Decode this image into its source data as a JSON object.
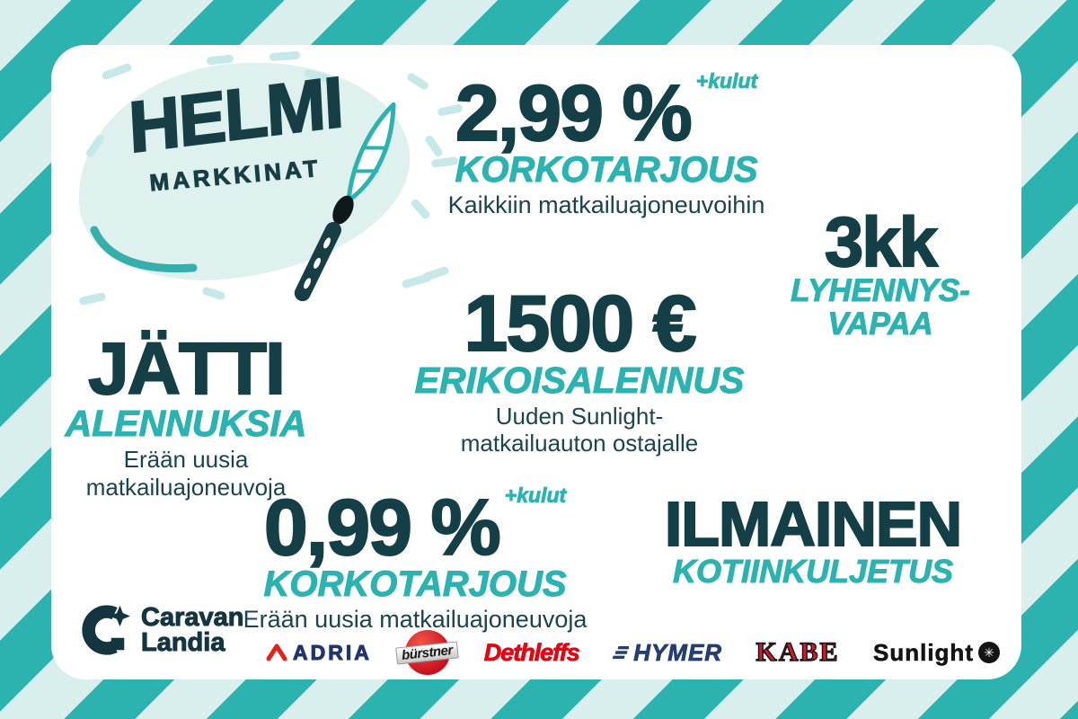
{
  "page": {
    "type": "promotional-banner"
  },
  "colors": {
    "dark_petrol": "#173e44",
    "teal_accent": "#2bb3b1",
    "stripe_teal": "#2cb3b0",
    "stripe_light": "#d9efee",
    "adria_navy": "#20356b",
    "adria_red": "#e2231a",
    "burstner_red": "#c8101f",
    "dethleffs_red": "#e20613",
    "hymer_navy": "#243e70",
    "kabe_red": "#d7182a",
    "sunlight_black": "#141414"
  },
  "campaign_logo": {
    "title": "HELMI",
    "subtitle": "MARKKINAT"
  },
  "offers": {
    "interest_299": {
      "value": "2,99 %",
      "superscript": "+kulut",
      "label": "KORKOTARJOUS",
      "description": "Kaikkiin matkailuajoneuvoihin"
    },
    "payment_free_3kk": {
      "value": "3kk",
      "label_line1": "LYHENNYS-",
      "label_line2": "VAPAA"
    },
    "discount_1500": {
      "value": "1500 €",
      "label": "ERIKOISALENNUS",
      "description_line1": "Uuden Sunlight-",
      "description_line2": "matkailuauton ostajalle"
    },
    "giant_discounts": {
      "value": "JÄTTI",
      "label": "ALENNUKSIA",
      "description_line1": "Erään uusia",
      "description_line2": "matkailuajoneuvoja"
    },
    "interest_099": {
      "value": "0,99 %",
      "superscript": "+kulut",
      "label": "KORKOTARJOUS",
      "description": "Erään uusia matkailuajoneuvoja"
    },
    "free_delivery": {
      "value": "ILMAINEN",
      "label": "KOTIINKULJETUS"
    }
  },
  "dealer": {
    "name_line1": "Caravan",
    "name_line2": "Landia"
  },
  "brands": [
    {
      "name": "ADRIA"
    },
    {
      "name": "bürstner"
    },
    {
      "name": "Dethleffs"
    },
    {
      "name": "HYMER"
    },
    {
      "name": "KABE"
    },
    {
      "name": "Sunlight",
      "icon_glyph": "✳"
    }
  ]
}
